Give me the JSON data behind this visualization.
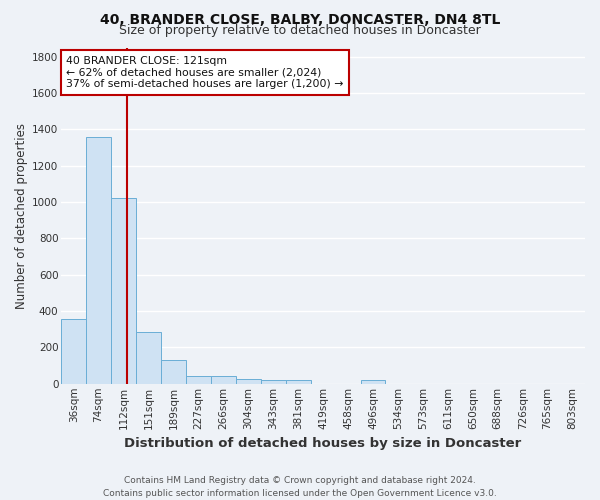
{
  "title1": "40, BRANDER CLOSE, BALBY, DONCASTER, DN4 8TL",
  "title2": "Size of property relative to detached houses in Doncaster",
  "xlabel": "Distribution of detached houses by size in Doncaster",
  "ylabel": "Number of detached properties",
  "footer1": "Contains HM Land Registry data © Crown copyright and database right 2024.",
  "footer2": "Contains public sector information licensed under the Open Government Licence v3.0.",
  "categories": [
    "36sqm",
    "74sqm",
    "112sqm",
    "151sqm",
    "189sqm",
    "227sqm",
    "266sqm",
    "304sqm",
    "343sqm",
    "381sqm",
    "419sqm",
    "458sqm",
    "496sqm",
    "534sqm",
    "573sqm",
    "611sqm",
    "650sqm",
    "688sqm",
    "726sqm",
    "765sqm",
    "803sqm"
  ],
  "values": [
    355,
    1360,
    1020,
    285,
    130,
    42,
    42,
    28,
    18,
    18,
    0,
    0,
    18,
    0,
    0,
    0,
    0,
    0,
    0,
    0,
    0
  ],
  "bar_color": "#cfe2f3",
  "bar_edge_color": "#6aaed6",
  "red_line_color": "#bb0000",
  "annotation_title": "40 BRANDER CLOSE: 121sqm",
  "annotation_line1": "← 62% of detached houses are smaller (2,024)",
  "annotation_line2": "37% of semi-detached houses are larger (1,200) →",
  "annotation_box_color": "#ffffff",
  "annotation_box_edge": "#bb0000",
  "ylim": [
    0,
    1850
  ],
  "yticks": [
    0,
    200,
    400,
    600,
    800,
    1000,
    1200,
    1400,
    1600,
    1800
  ],
  "bg_color": "#eef2f7",
  "grid_color": "#ffffff",
  "title1_fontsize": 10,
  "title2_fontsize": 9,
  "xlabel_fontsize": 9.5,
  "ylabel_fontsize": 8.5,
  "tick_fontsize": 7.5,
  "footer_fontsize": 6.5
}
